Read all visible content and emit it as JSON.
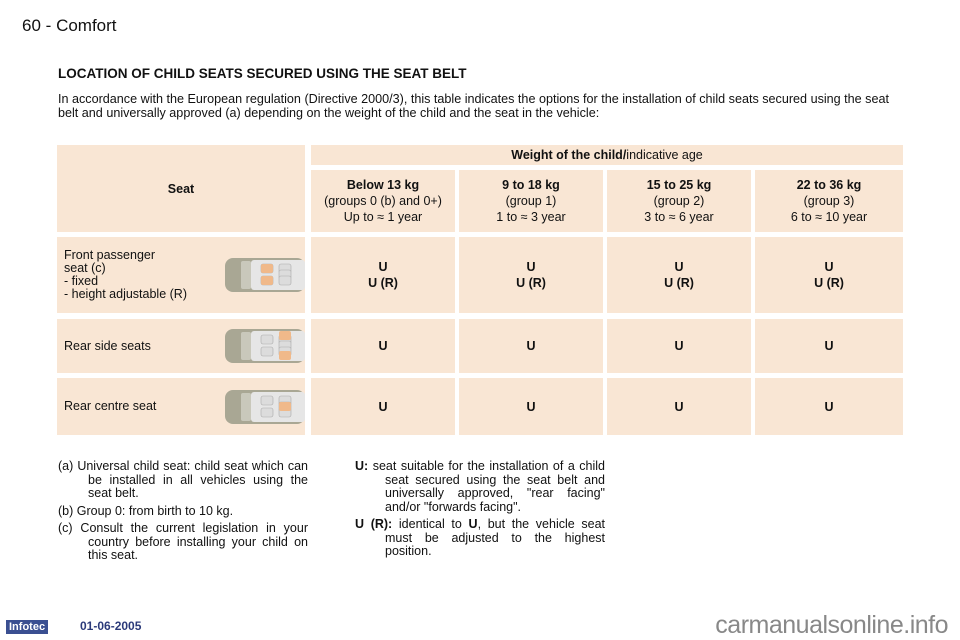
{
  "header": {
    "page_number": "60",
    "separator": "-",
    "section": "Comfort"
  },
  "title": "LOCATION OF CHILD SEATS SECURED USING THE SEAT BELT",
  "intro": "In accordance with the European regulation (Directive 2000/3), this table indicates the options for the installation of child seats secured using the seat belt and universally approved (a) depending on the weight of the child and the seat in the vehicle:",
  "table": {
    "seat_header": "Seat",
    "weight_header_bold": "Weight of the child/",
    "weight_header_rest": "indicative age",
    "columns": [
      {
        "weight": "Below 13 kg",
        "group": "(groups 0 (b) and 0+)",
        "age": "Up to ≈ 1 year"
      },
      {
        "weight": "9 to 18 kg",
        "group": "(group 1)",
        "age": "1 to ≈ 3 year"
      },
      {
        "weight": "15 to 25 kg",
        "group": "(group 2)",
        "age": "3 to ≈ 6 year"
      },
      {
        "weight": "22 to 36 kg",
        "group": "(group 3)",
        "age": "6 to ≈ 10 year"
      }
    ],
    "rows": [
      {
        "seat_lines": [
          "Front passenger",
          "seat (c)",
          "- fixed",
          "- height adjustable (R)"
        ],
        "values": [
          [
            "U",
            "U (R)"
          ],
          [
            "U",
            "U (R)"
          ],
          [
            "U",
            "U (R)"
          ],
          [
            "U",
            "U (R)"
          ]
        ],
        "highlight": "front"
      },
      {
        "seat_lines": [
          "Rear side seats"
        ],
        "values": [
          [
            "U"
          ],
          [
            "U"
          ],
          [
            "U"
          ],
          [
            "U"
          ]
        ],
        "highlight": "rear-side"
      },
      {
        "seat_lines": [
          "Rear centre seat"
        ],
        "values": [
          [
            "U"
          ],
          [
            "U"
          ],
          [
            "U"
          ],
          [
            "U"
          ]
        ],
        "highlight": "rear-centre"
      }
    ]
  },
  "footnotes": {
    "a": "(a)  Universal child seat: child seat which can be installed in all vehicles using the seat belt.",
    "b": "(b)  Group 0: from birth to 10 kg.",
    "c": "(c)  Consult the current legislation in your country before installing your child on this seat."
  },
  "legend": {
    "u_key": "U:",
    "u_text": " seat suitable for the installation of a child seat secured using the seat belt and universally approved, \"rear facing\" and/or \"forwards facing\".",
    "ur_key": "U (R):",
    "ur_text1": " identical to ",
    "ur_u": "U",
    "ur_text2": ", but the vehicle seat must be adjusted to the highest position."
  },
  "footer": {
    "logo": "Infotec",
    "date": "01-06-2005",
    "watermark": "carmanualsonline.info"
  },
  "colors": {
    "cell_bg": "#f9e6d4",
    "highlight_seat": "#f0b98a"
  }
}
